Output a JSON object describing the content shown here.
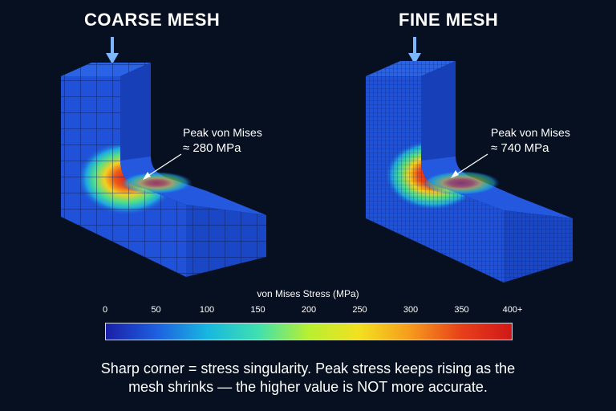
{
  "panels": {
    "coarse": {
      "title": "COARSE MESH",
      "callout_label": "Peak von Mises",
      "callout_value": "≈ 280 MPa"
    },
    "fine": {
      "title": "FINE MESH",
      "callout_label": "Peak von Mises",
      "callout_value": "≈ 740 MPa"
    }
  },
  "legend": {
    "title": "von Mises Stress (MPa)",
    "ticks": [
      "0",
      "50",
      "100",
      "150",
      "200",
      "250",
      "300",
      "350",
      "400+"
    ],
    "colors": [
      "#1a1fa8",
      "#1e5fe0",
      "#17b7e0",
      "#3fe0b0",
      "#b8f030",
      "#f3e020",
      "#f59b1c",
      "#e8401a",
      "#d01818"
    ]
  },
  "caption": {
    "line1": "Sharp corner = stress singularity. Peak stress keeps rising as the",
    "line2": "mesh shrinks — the higher value is NOT more accurate."
  },
  "colors": {
    "background": "#071021",
    "mesh_blue": "#1f52d8",
    "hotspot_red": "#e2221a",
    "load_arrow": "#7cb6ff"
  }
}
